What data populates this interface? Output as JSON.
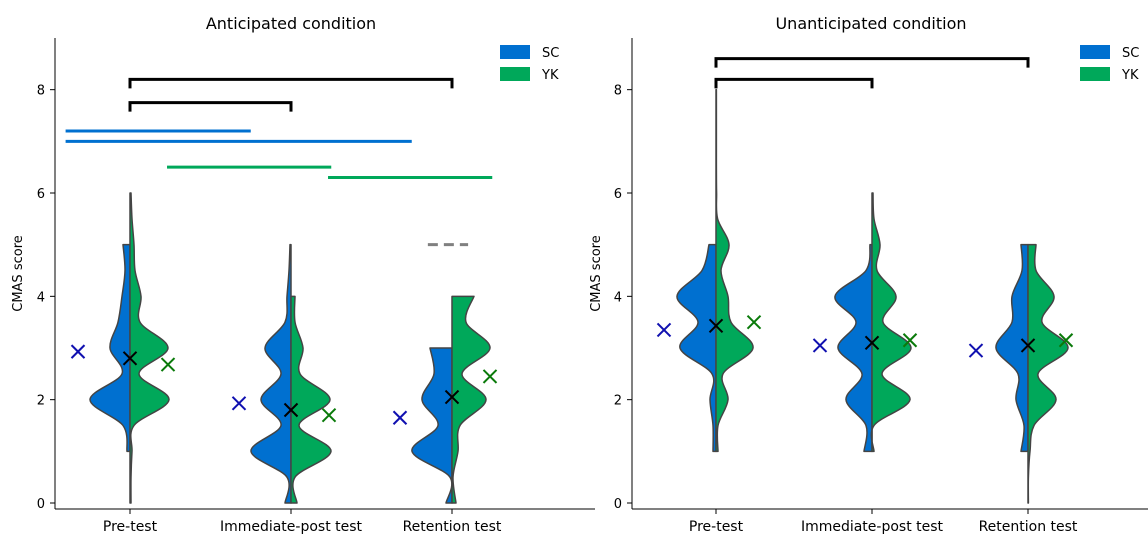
{
  "colors": {
    "SC": "#0070D0",
    "YK": "#00A85A",
    "SC_mean_marker": "#1010B0",
    "YK_mean_marker": "#0A7A0A",
    "overall_mean_marker": "#000000",
    "violin_edge": "#444444",
    "bracket": "#000000",
    "dashed_line": "#808080"
  },
  "chart_data": [
    {
      "type": "violin",
      "title": "Anticipated condition",
      "ylabel": "CMAS score",
      "xlabel": "",
      "categories": [
        "Pre-test",
        "Immediate-post test",
        "Retention test"
      ],
      "yticks": [
        0,
        2,
        4,
        6,
        8
      ],
      "ylim": [
        0,
        9
      ],
      "grid": false,
      "legend": {
        "position": "top-right",
        "entries": [
          "SC",
          "YK"
        ]
      },
      "series": [
        {
          "name": "SC",
          "side": "left",
          "violins": [
            {
              "range": [
                1,
                5
              ],
              "density": [
                [
                  1,
                  0.15
                ],
                [
                  1.5,
                  0.35
                ],
                [
                  2,
                  2.0
                ],
                [
                  2.5,
                  0.4
                ],
                [
                  3,
                  1.0
                ],
                [
                  3.5,
                  0.6
                ],
                [
                  4,
                  0.4
                ],
                [
                  4.5,
                  0.25
                ],
                [
                  5,
                  0.35
                ]
              ]
            },
            {
              "range": [
                0,
                5
              ],
              "density": [
                [
                  0,
                  0.3
                ],
                [
                  0.5,
                  0.2
                ],
                [
                  1,
                  2.0
                ],
                [
                  1.5,
                  0.5
                ],
                [
                  2,
                  1.5
                ],
                [
                  2.5,
                  0.5
                ],
                [
                  3,
                  1.3
                ],
                [
                  3.5,
                  0.3
                ],
                [
                  4,
                  0.2
                ],
                [
                  4.5,
                  0.1
                ],
                [
                  5,
                  0.05
                ]
              ]
            },
            {
              "range": [
                0,
                3
              ],
              "density": [
                [
                  0,
                  0.3
                ],
                [
                  0.5,
                  0.1
                ],
                [
                  1,
                  2.0
                ],
                [
                  1.5,
                  0.7
                ],
                [
                  2,
                  1.5
                ],
                [
                  2.5,
                  0.9
                ],
                [
                  3,
                  1.1
                ]
              ]
            }
          ],
          "means": [
            2.93,
            1.93,
            1.65
          ]
        },
        {
          "name": "YK",
          "side": "right",
          "violins": [
            {
              "range": [
                0,
                6
              ],
              "density": [
                [
                  0,
                  0.05
                ],
                [
                  0.5,
                  0.05
                ],
                [
                  1,
                  0.1
                ],
                [
                  1.5,
                  0.2
                ],
                [
                  2,
                  1.95
                ],
                [
                  2.5,
                  0.45
                ],
                [
                  3,
                  1.9
                ],
                [
                  3.5,
                  0.5
                ],
                [
                  4,
                  0.55
                ],
                [
                  4.5,
                  0.25
                ],
                [
                  5,
                  0.2
                ],
                [
                  5.5,
                  0.1
                ],
                [
                  6,
                  0.05
                ]
              ]
            },
            {
              "range": [
                0,
                4
              ],
              "density": [
                [
                  0,
                  0.3
                ],
                [
                  0.5,
                  0.2
                ],
                [
                  1,
                  2.0
                ],
                [
                  1.5,
                  0.4
                ],
                [
                  2,
                  1.95
                ],
                [
                  2.5,
                  0.45
                ],
                [
                  3,
                  0.6
                ],
                [
                  3.5,
                  0.2
                ],
                [
                  4,
                  0.2
                ]
              ]
            },
            {
              "range": [
                0,
                4
              ],
              "density": [
                [
                  0,
                  0.2
                ],
                [
                  0.5,
                  0.05
                ],
                [
                  1,
                  0.3
                ],
                [
                  1.5,
                  0.4
                ],
                [
                  2,
                  1.7
                ],
                [
                  2.5,
                  0.5
                ],
                [
                  3,
                  1.9
                ],
                [
                  3.5,
                  0.7
                ],
                [
                  4,
                  1.1
                ]
              ]
            }
          ],
          "means": [
            2.68,
            1.7,
            2.45
          ]
        }
      ],
      "overall_means": [
        2.8,
        1.8,
        2.05
      ],
      "brackets": [
        {
          "from": 0,
          "to": 1,
          "y": 7.75
        },
        {
          "from": 0,
          "to": 2,
          "y": 8.2
        }
      ],
      "significance_lines": [
        {
          "series": "SC",
          "x_from": -0.4,
          "x_to": 0.75,
          "y": 7.2
        },
        {
          "series": "SC",
          "x_from": -0.4,
          "x_to": 1.75,
          "y": 7.0
        },
        {
          "series": "YK",
          "x_from": 0.23,
          "x_to": 1.25,
          "y": 6.5
        },
        {
          "series": "YK",
          "x_from": 1.23,
          "x_to": 2.25,
          "y": 6.3
        }
      ],
      "dashed_lines": [
        {
          "x_from": 1.85,
          "x_to": 2.1,
          "y": 5.0
        }
      ]
    },
    {
      "type": "violin",
      "title": "Unanticipated condition",
      "ylabel": "CMAS score",
      "xlabel": "",
      "categories": [
        "Pre-test",
        "Immediate-post test",
        "Retention test"
      ],
      "yticks": [
        0,
        2,
        4,
        6,
        8
      ],
      "ylim": [
        0,
        9
      ],
      "grid": false,
      "legend": {
        "position": "top-right",
        "entries": [
          "SC",
          "YK"
        ]
      },
      "series": [
        {
          "name": "SC",
          "side": "left",
          "violins": [
            {
              "range": [
                1,
                5
              ],
              "density": [
                [
                  1,
                  0.15
                ],
                [
                  1.5,
                  0.15
                ],
                [
                  2,
                  0.3
                ],
                [
                  2.5,
                  0.2
                ],
                [
                  3,
                  1.8
                ],
                [
                  3.5,
                  0.9
                ],
                [
                  4,
                  1.95
                ],
                [
                  4.5,
                  0.7
                ],
                [
                  5,
                  0.35
                ]
              ]
            },
            {
              "range": [
                1,
                5
              ],
              "density": [
                [
                  1,
                  0.4
                ],
                [
                  1.5,
                  0.3
                ],
                [
                  2,
                  1.3
                ],
                [
                  2.5,
                  0.5
                ],
                [
                  3,
                  1.7
                ],
                [
                  3.5,
                  0.8
                ],
                [
                  4,
                  1.85
                ],
                [
                  4.5,
                  0.3
                ],
                [
                  5,
                  0.1
                ]
              ]
            },
            {
              "range": [
                1,
                5
              ],
              "density": [
                [
                  1,
                  0.35
                ],
                [
                  1.5,
                  0.2
                ],
                [
                  2,
                  0.6
                ],
                [
                  2.5,
                  0.5
                ],
                [
                  3,
                  1.6
                ],
                [
                  3.5,
                  0.8
                ],
                [
                  4,
                  0.8
                ],
                [
                  4.5,
                  0.3
                ],
                [
                  5,
                  0.35
                ]
              ]
            }
          ],
          "means": [
            3.35,
            3.05,
            2.95
          ]
        },
        {
          "name": "YK",
          "side": "right",
          "violins": [
            {
              "range": [
                1,
                8
              ],
              "density": [
                [
                  1,
                  0.1
                ],
                [
                  1.5,
                  0.1
                ],
                [
                  2,
                  0.6
                ],
                [
                  2.5,
                  0.35
                ],
                [
                  3,
                  1.85
                ],
                [
                  3.5,
                  0.75
                ],
                [
                  4,
                  0.6
                ],
                [
                  4.5,
                  0.25
                ],
                [
                  5,
                  0.65
                ],
                [
                  5.5,
                  0.08
                ],
                [
                  6,
                  0.03
                ],
                [
                  6.5,
                  0.02
                ],
                [
                  7,
                  0.02
                ],
                [
                  7.5,
                  0.02
                ],
                [
                  8,
                  0.02
                ]
              ]
            },
            {
              "range": [
                1,
                6
              ],
              "density": [
                [
                  1,
                  0.1
                ],
                [
                  1.5,
                  0.1
                ],
                [
                  2,
                  1.9
                ],
                [
                  2.5,
                  0.5
                ],
                [
                  3,
                  1.95
                ],
                [
                  3.5,
                  0.55
                ],
                [
                  4,
                  1.2
                ],
                [
                  4.5,
                  0.25
                ],
                [
                  5,
                  0.4
                ],
                [
                  5.5,
                  0.1
                ],
                [
                  6,
                  0.05
                ]
              ]
            },
            {
              "range": [
                0,
                5
              ],
              "density": [
                [
                  0,
                  0.02
                ],
                [
                  0.5,
                  0.02
                ],
                [
                  1,
                  0.1
                ],
                [
                  1.5,
                  0.3
                ],
                [
                  2,
                  1.4
                ],
                [
                  2.5,
                  0.5
                ],
                [
                  3,
                  2.0
                ],
                [
                  3.5,
                  0.7
                ],
                [
                  4,
                  1.3
                ],
                [
                  4.5,
                  0.4
                ],
                [
                  5,
                  0.4
                ]
              ]
            }
          ],
          "means": [
            3.5,
            3.15,
            3.15
          ]
        }
      ],
      "overall_means": [
        3.43,
        3.1,
        3.05
      ],
      "brackets": [
        {
          "from": 0,
          "to": 1,
          "y": 8.2
        },
        {
          "from": 0,
          "to": 2,
          "y": 8.6
        }
      ],
      "significance_lines": [],
      "dashed_lines": []
    }
  ]
}
